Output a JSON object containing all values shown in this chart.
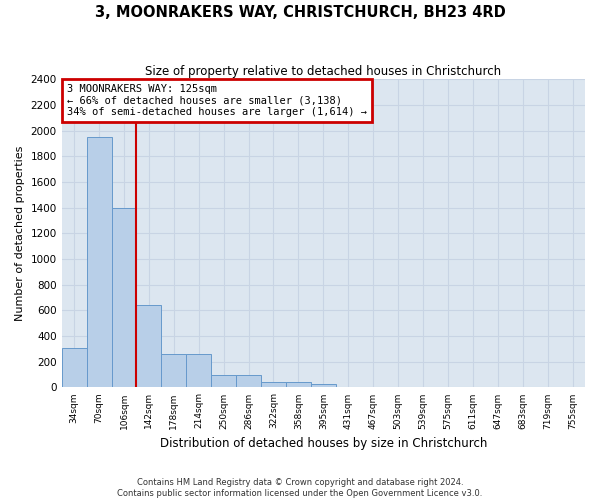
{
  "title": "3, MOONRAKERS WAY, CHRISTCHURCH, BH23 4RD",
  "subtitle": "Size of property relative to detached houses in Christchurch",
  "xlabel": "Distribution of detached houses by size in Christchurch",
  "ylabel": "Number of detached properties",
  "bin_labels": [
    "34sqm",
    "70sqm",
    "106sqm",
    "142sqm",
    "178sqm",
    "214sqm",
    "250sqm",
    "286sqm",
    "322sqm",
    "358sqm",
    "395sqm",
    "431sqm",
    "467sqm",
    "503sqm",
    "539sqm",
    "575sqm",
    "611sqm",
    "647sqm",
    "683sqm",
    "719sqm",
    "755sqm"
  ],
  "bar_heights": [
    310,
    1950,
    1400,
    640,
    260,
    260,
    100,
    100,
    40,
    40,
    25,
    0,
    0,
    0,
    0,
    0,
    0,
    0,
    0,
    0,
    0
  ],
  "bar_color": "#b8cfe8",
  "bar_edge_color": "#6699cc",
  "property_line_label": "3 MOONRAKERS WAY: 125sqm",
  "annotation_line1": "← 66% of detached houses are smaller (3,138)",
  "annotation_line2": "34% of semi-detached houses are larger (1,614) →",
  "annotation_box_color": "#ffffff",
  "annotation_box_edge_color": "#cc0000",
  "vertical_line_color": "#cc0000",
  "vline_position": 2.5,
  "ylim": [
    0,
    2400
  ],
  "yticks": [
    0,
    200,
    400,
    600,
    800,
    1000,
    1200,
    1400,
    1600,
    1800,
    2000,
    2200,
    2400
  ],
  "grid_color": "#c8d4e4",
  "background_color": "#dce6f0",
  "footer1": "Contains HM Land Registry data © Crown copyright and database right 2024.",
  "footer2": "Contains public sector information licensed under the Open Government Licence v3.0."
}
